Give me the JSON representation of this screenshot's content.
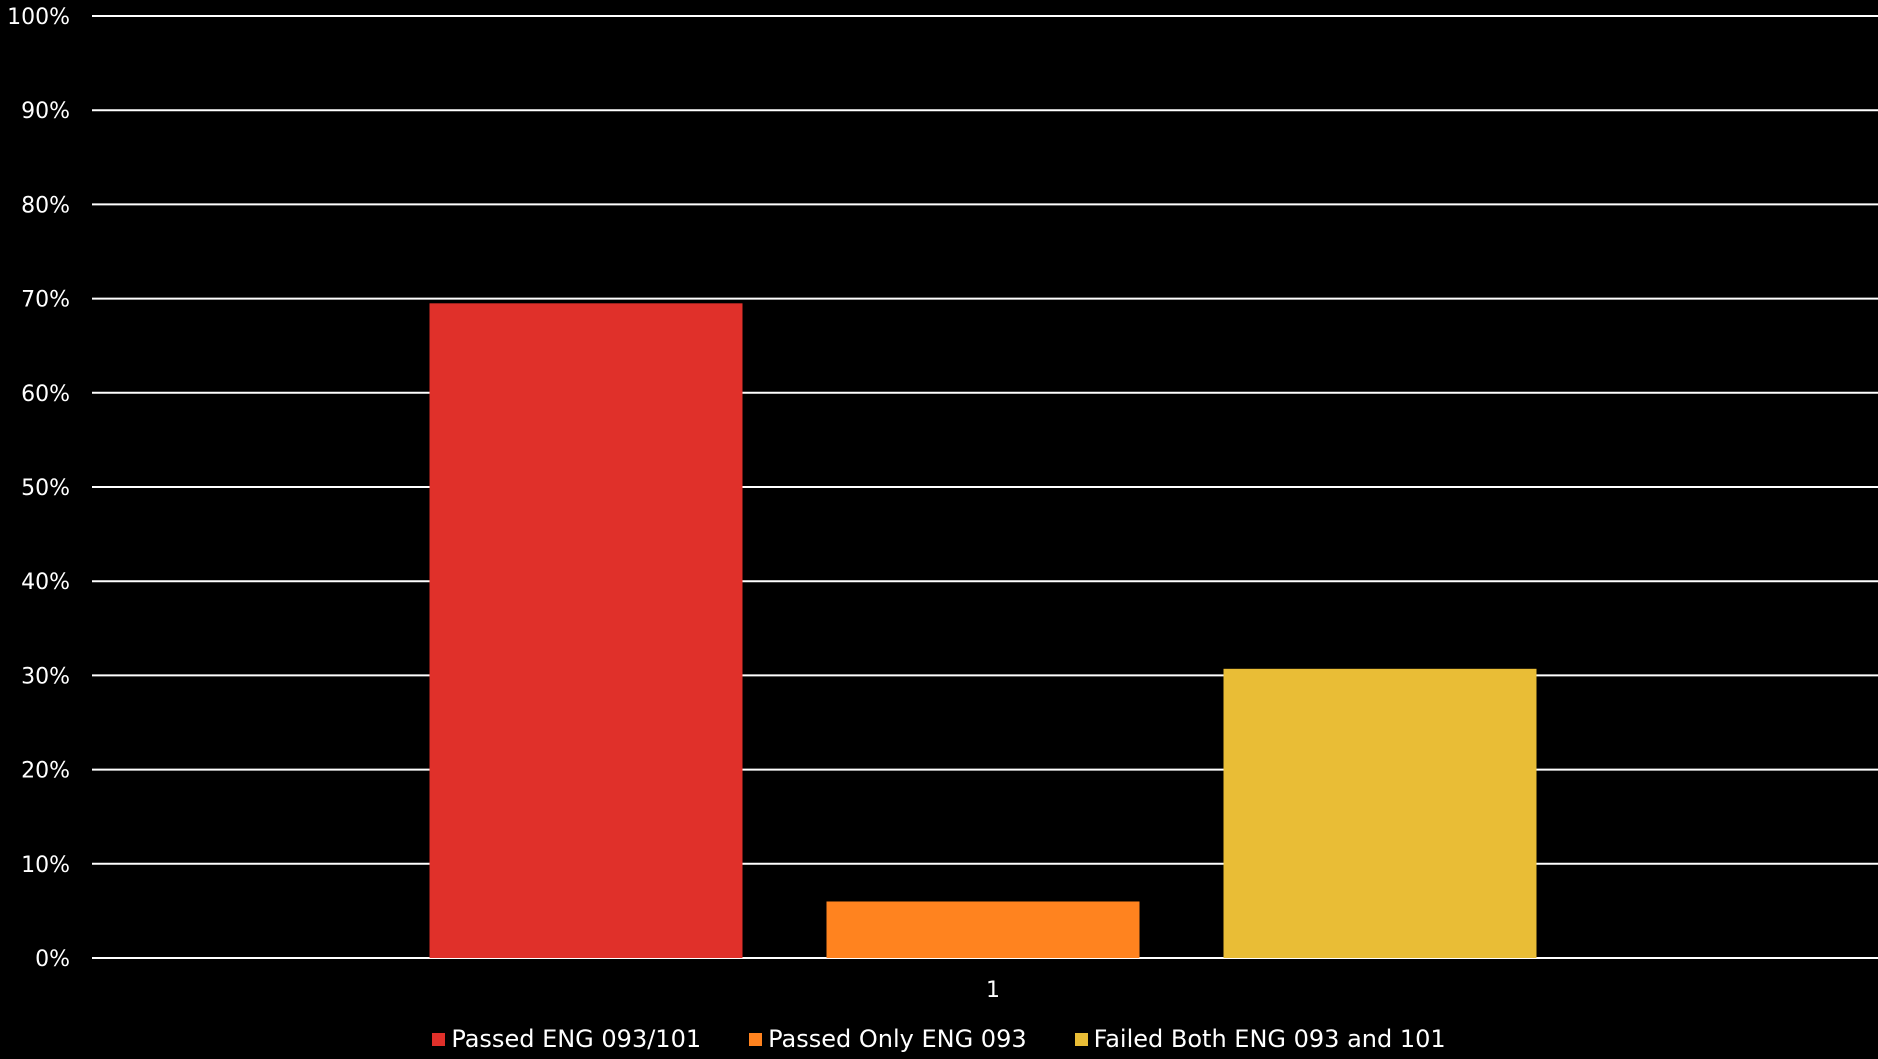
{
  "chart_data": {
    "type": "bar",
    "categories": [
      "1"
    ],
    "series": [
      {
        "name": "Passed ENG 093/101",
        "values": [
          0.695
        ],
        "color": "#e0302a"
      },
      {
        "name": "Passed Only ENG 093",
        "values": [
          0.06
        ],
        "color": "#ff831f"
      },
      {
        "name": "Failed Both ENG 093 and 101",
        "values": [
          0.307
        ],
        "color": "#e9bd36"
      }
    ],
    "ylim": [
      0,
      1
    ],
    "yticks": [
      "0%",
      "10%",
      "20%",
      "30%",
      "40%",
      "50%",
      "60%",
      "70%",
      "80%",
      "90%",
      "100%"
    ],
    "title": "",
    "xlabel": "",
    "ylabel": "",
    "grid": true,
    "legend_position": "bottom",
    "background": "#000000",
    "gridline_color": "#ffffff"
  }
}
